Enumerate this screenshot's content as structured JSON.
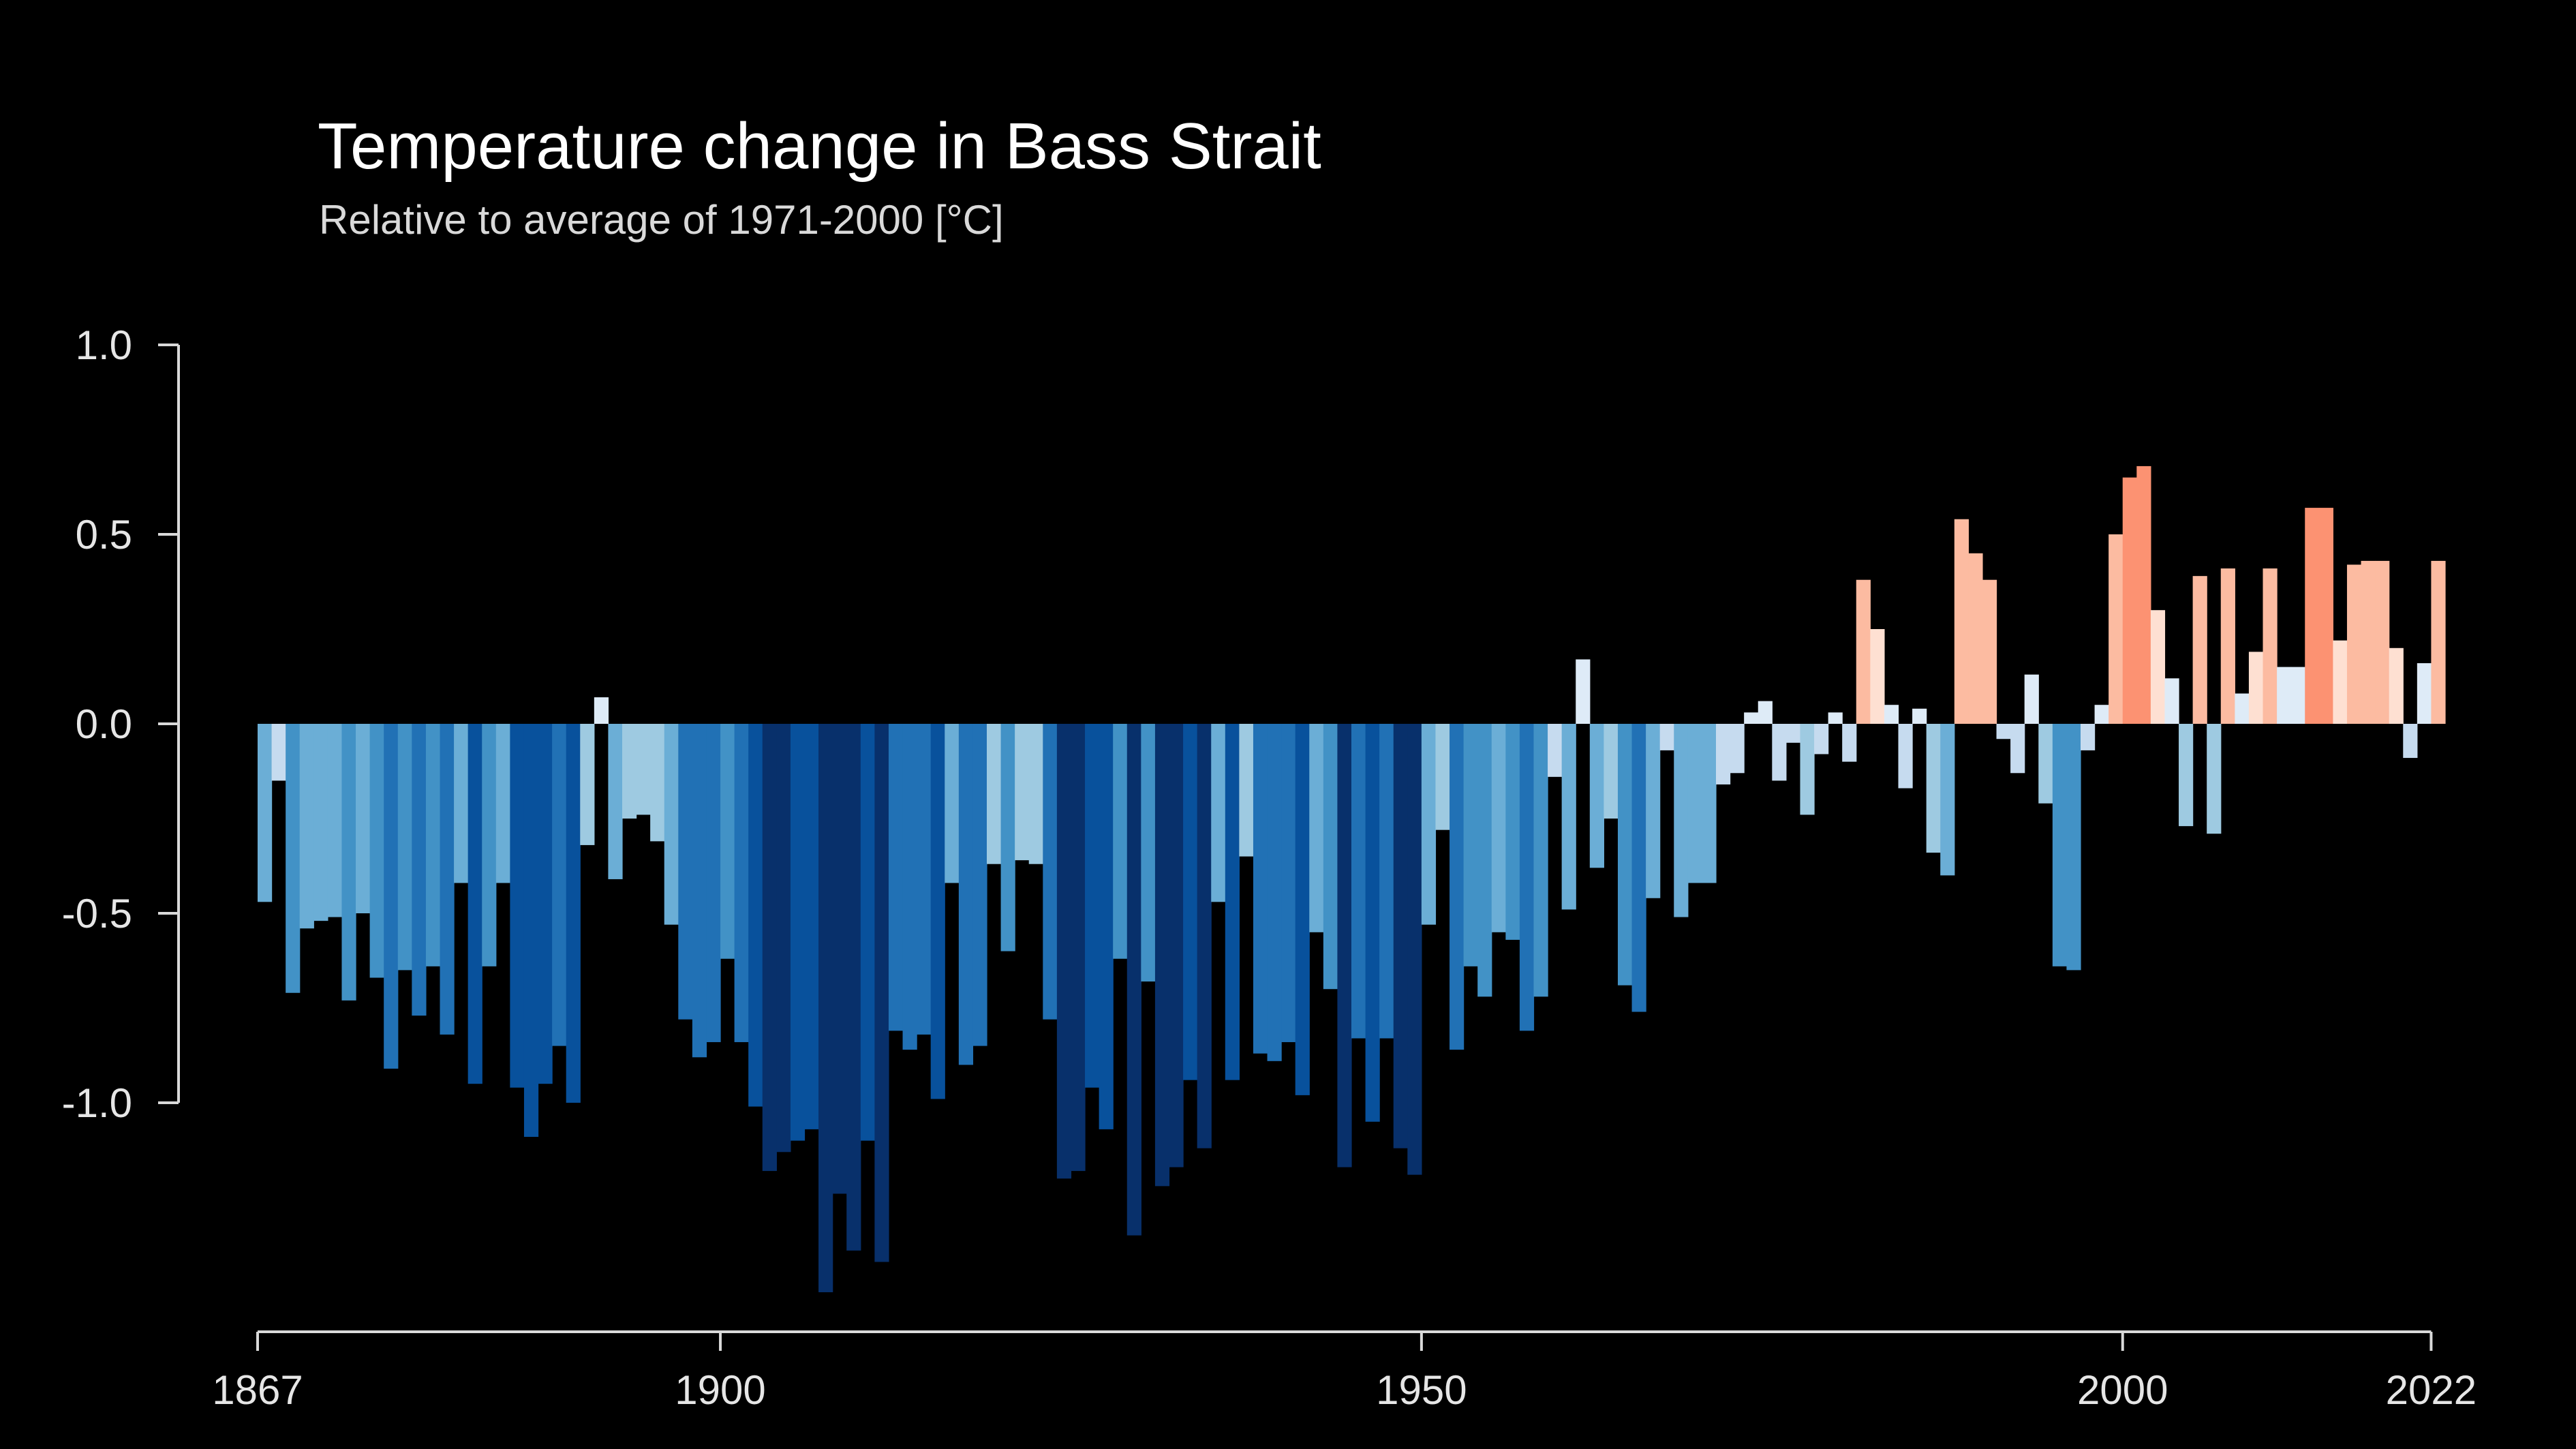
{
  "chart_data": {
    "type": "bar",
    "title": "Temperature change in Bass Strait",
    "subtitle": "Relative to average of 1971-2000  [°C]",
    "xlabel": "",
    "ylabel": "",
    "x_start": 1867,
    "x_end": 2022,
    "ylim": [
      -1.5,
      1.0
    ],
    "y_ticks": [
      1.0,
      0.5,
      0.0,
      -0.5,
      -1.0
    ],
    "y_tick_labels": [
      "1.0",
      "0.5",
      "0.0",
      "-0.5",
      "-1.0"
    ],
    "x_ticks": [
      1867,
      1900,
      1950,
      2000,
      2022
    ],
    "x_tick_labels": [
      "1867",
      "1900",
      "1950",
      "2000",
      "2022"
    ],
    "grid": false,
    "legend": "none",
    "color_scale": {
      "colors": [
        "#08306b",
        "#08519c",
        "#2171b5",
        "#4292c6",
        "#6baed6",
        "#9ecae1",
        "#c6dbef",
        "#deebf7",
        "#fee0d2",
        "#fcbba1",
        "#fc9272",
        "#fb6a4a",
        "#ef3b2c",
        "#cb181d"
      ],
      "vmin": -1.3,
      "vmax": 1.3
    },
    "categories": [
      1867,
      1868,
      1869,
      1870,
      1871,
      1872,
      1873,
      1874,
      1875,
      1876,
      1877,
      1878,
      1879,
      1880,
      1881,
      1882,
      1883,
      1884,
      1885,
      1886,
      1887,
      1888,
      1889,
      1890,
      1891,
      1892,
      1893,
      1894,
      1895,
      1896,
      1897,
      1898,
      1899,
      1900,
      1901,
      1902,
      1903,
      1904,
      1905,
      1906,
      1907,
      1908,
      1909,
      1910,
      1911,
      1912,
      1913,
      1914,
      1915,
      1916,
      1917,
      1918,
      1919,
      1920,
      1921,
      1922,
      1923,
      1924,
      1925,
      1926,
      1927,
      1928,
      1929,
      1930,
      1931,
      1932,
      1933,
      1934,
      1935,
      1936,
      1937,
      1938,
      1939,
      1940,
      1941,
      1942,
      1943,
      1944,
      1945,
      1946,
      1947,
      1948,
      1949,
      1950,
      1951,
      1952,
      1953,
      1954,
      1955,
      1956,
      1957,
      1958,
      1959,
      1960,
      1961,
      1962,
      1963,
      1964,
      1965,
      1966,
      1967,
      1968,
      1969,
      1970,
      1971,
      1972,
      1973,
      1974,
      1975,
      1976,
      1977,
      1978,
      1979,
      1980,
      1981,
      1982,
      1983,
      1984,
      1985,
      1986,
      1987,
      1988,
      1989,
      1990,
      1991,
      1992,
      1993,
      1994,
      1995,
      1996,
      1997,
      1998,
      1999,
      2000,
      2001,
      2002,
      2003,
      2004,
      2005,
      2006,
      2007,
      2008,
      2009,
      2010,
      2011,
      2012,
      2013,
      2014,
      2015,
      2016,
      2017,
      2018,
      2019,
      2020,
      2021,
      2022
    ],
    "values": [
      -0.47,
      -0.15,
      -0.71,
      -0.54,
      -0.52,
      -0.51,
      -0.73,
      -0.5,
      -0.67,
      -0.91,
      -0.65,
      -0.77,
      -0.64,
      -0.82,
      -0.42,
      -0.95,
      -0.64,
      -0.42,
      -0.96,
      -1.09,
      -0.95,
      -0.85,
      -1.0,
      -0.32,
      0.07,
      -0.41,
      -0.25,
      -0.24,
      -0.31,
      -0.53,
      -0.78,
      -0.88,
      -0.84,
      -0.62,
      -0.84,
      -1.01,
      -1.18,
      -1.13,
      -1.1,
      -1.07,
      -1.5,
      -1.24,
      -1.39,
      -1.1,
      -1.42,
      -0.81,
      -0.86,
      -0.82,
      -0.99,
      -0.42,
      -0.9,
      -0.85,
      -0.37,
      -0.6,
      -0.36,
      -0.37,
      -0.78,
      -1.2,
      -1.18,
      -0.96,
      -1.07,
      -0.62,
      -1.35,
      -0.68,
      -1.22,
      -1.17,
      -0.94,
      -1.12,
      -0.47,
      -0.94,
      -0.35,
      -0.87,
      -0.89,
      -0.84,
      -0.98,
      -0.55,
      -0.7,
      -1.17,
      -0.83,
      -1.05,
      -0.83,
      -1.12,
      -1.19,
      -0.53,
      -0.28,
      -0.86,
      -0.64,
      -0.72,
      -0.55,
      -0.57,
      -0.81,
      -0.72,
      -0.14,
      -0.49,
      0.17,
      -0.38,
      -0.25,
      -0.69,
      -0.76,
      -0.46,
      -0.07,
      -0.51,
      -0.42,
      -0.42,
      -0.16,
      -0.13,
      0.03,
      0.06,
      -0.15,
      -0.05,
      -0.24,
      -0.08,
      0.03,
      -0.1,
      0.38,
      0.25,
      0.05,
      -0.17,
      0.04,
      -0.34,
      -0.4,
      0.54,
      0.45,
      0.38,
      -0.04,
      -0.13,
      0.13,
      -0.21,
      -0.64,
      -0.65,
      -0.07,
      0.05,
      0.5,
      0.65,
      0.68,
      0.3,
      0.12,
      -0.27,
      0.39,
      -0.29,
      0.41,
      0.08,
      0.19,
      0.41,
      0.15,
      0.15,
      0.57,
      0.57,
      0.22,
      0.42,
      0.43,
      0.43,
      0.2,
      -0.09,
      0.16,
      0.43
    ]
  }
}
